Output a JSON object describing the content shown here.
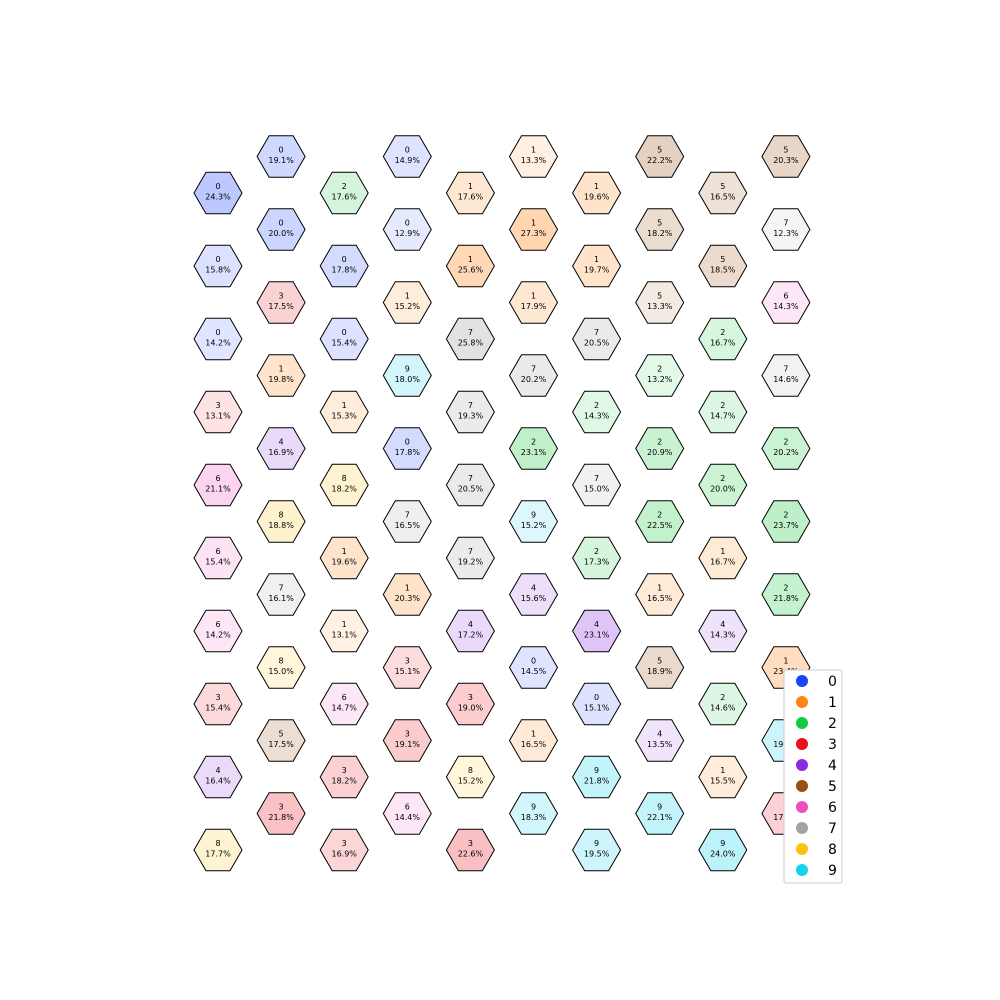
{
  "chart_data": {
    "type": "heatmap",
    "layout": "hexagonal grid, offset columns",
    "title": "",
    "xlabel": "",
    "ylabel": "",
    "legend": {
      "placement": "bottom-right",
      "entries": [
        {
          "label": "0",
          "color": "#1a44ff"
        },
        {
          "label": "1",
          "color": "#ff8514"
        },
        {
          "label": "2",
          "color": "#17c93e"
        },
        {
          "label": "3",
          "color": "#ec0f18"
        },
        {
          "label": "4",
          "color": "#8a2be2"
        },
        {
          "label": "5",
          "color": "#9a4e10"
        },
        {
          "label": "6",
          "color": "#ef4fbd"
        },
        {
          "label": "7",
          "color": "#a3a3a3"
        },
        {
          "label": "8",
          "color": "#fcc20f"
        },
        {
          "label": "9",
          "color": "#17d2ee"
        }
      ]
    },
    "columns": [
      {
        "cells": [
          {
            "digit": "0",
            "pct": "24.3%",
            "value": 24.3
          },
          {
            "digit": "0",
            "pct": "15.8%",
            "value": 15.8
          },
          {
            "digit": "0",
            "pct": "14.2%",
            "value": 14.2
          },
          {
            "digit": "3",
            "pct": "13.1%",
            "value": 13.1
          },
          {
            "digit": "6",
            "pct": "21.1%",
            "value": 21.1
          },
          {
            "digit": "6",
            "pct": "15.4%",
            "value": 15.4
          },
          {
            "digit": "6",
            "pct": "14.2%",
            "value": 14.2
          },
          {
            "digit": "3",
            "pct": "15.4%",
            "value": 15.4
          },
          {
            "digit": "4",
            "pct": "16.4%",
            "value": 16.4
          },
          {
            "digit": "8",
            "pct": "17.7%",
            "value": 17.7
          }
        ]
      },
      {
        "cells": [
          {
            "digit": "0",
            "pct": "19.1%",
            "value": 19.1
          },
          {
            "digit": "0",
            "pct": "20.0%",
            "value": 20.0
          },
          {
            "digit": "3",
            "pct": "17.5%",
            "value": 17.5
          },
          {
            "digit": "1",
            "pct": "19.8%",
            "value": 19.8
          },
          {
            "digit": "4",
            "pct": "16.9%",
            "value": 16.9
          },
          {
            "digit": "8",
            "pct": "18.8%",
            "value": 18.8
          },
          {
            "digit": "7",
            "pct": "16.1%",
            "value": 16.1
          },
          {
            "digit": "8",
            "pct": "15.0%",
            "value": 15.0
          },
          {
            "digit": "5",
            "pct": "17.5%",
            "value": 17.5
          },
          {
            "digit": "3",
            "pct": "21.8%",
            "value": 21.8
          }
        ]
      },
      {
        "cells": [
          {
            "digit": "2",
            "pct": "17.6%",
            "value": 17.6
          },
          {
            "digit": "0",
            "pct": "17.8%",
            "value": 17.8
          },
          {
            "digit": "0",
            "pct": "15.4%",
            "value": 15.4
          },
          {
            "digit": "1",
            "pct": "15.3%",
            "value": 15.3
          },
          {
            "digit": "8",
            "pct": "18.2%",
            "value": 18.2
          },
          {
            "digit": "1",
            "pct": "19.6%",
            "value": 19.6
          },
          {
            "digit": "1",
            "pct": "13.1%",
            "value": 13.1
          },
          {
            "digit": "6",
            "pct": "14.7%",
            "value": 14.7
          },
          {
            "digit": "3",
            "pct": "18.2%",
            "value": 18.2
          },
          {
            "digit": "3",
            "pct": "16.9%",
            "value": 16.9
          }
        ]
      },
      {
        "cells": [
          {
            "digit": "0",
            "pct": "14.9%",
            "value": 14.9
          },
          {
            "digit": "0",
            "pct": "12.9%",
            "value": 12.9
          },
          {
            "digit": "1",
            "pct": "15.2%",
            "value": 15.2
          },
          {
            "digit": "9",
            "pct": "18.0%",
            "value": 18.0
          },
          {
            "digit": "0",
            "pct": "17.8%",
            "value": 17.8
          },
          {
            "digit": "7",
            "pct": "16.5%",
            "value": 16.5
          },
          {
            "digit": "1",
            "pct": "20.3%",
            "value": 20.3
          },
          {
            "digit": "3",
            "pct": "15.1%",
            "value": 15.1
          },
          {
            "digit": "3",
            "pct": "19.1%",
            "value": 19.1
          },
          {
            "digit": "6",
            "pct": "14.4%",
            "value": 14.4
          }
        ]
      },
      {
        "cells": [
          {
            "digit": "1",
            "pct": "17.6%",
            "value": 17.6
          },
          {
            "digit": "1",
            "pct": "25.6%",
            "value": 25.6
          },
          {
            "digit": "7",
            "pct": "25.8%",
            "value": 25.8
          },
          {
            "digit": "7",
            "pct": "19.3%",
            "value": 19.3
          },
          {
            "digit": "7",
            "pct": "20.5%",
            "value": 20.5
          },
          {
            "digit": "7",
            "pct": "19.2%",
            "value": 19.2
          },
          {
            "digit": "4",
            "pct": "17.2%",
            "value": 17.2
          },
          {
            "digit": "3",
            "pct": "19.0%",
            "value": 19.0
          },
          {
            "digit": "8",
            "pct": "15.2%",
            "value": 15.2
          },
          {
            "digit": "3",
            "pct": "22.6%",
            "value": 22.6
          }
        ]
      },
      {
        "cells": [
          {
            "digit": "1",
            "pct": "13.3%",
            "value": 13.3
          },
          {
            "digit": "1",
            "pct": "27.3%",
            "value": 27.3
          },
          {
            "digit": "1",
            "pct": "17.9%",
            "value": 17.9
          },
          {
            "digit": "7",
            "pct": "20.2%",
            "value": 20.2
          },
          {
            "digit": "2",
            "pct": "23.1%",
            "value": 23.1
          },
          {
            "digit": "9",
            "pct": "15.2%",
            "value": 15.2
          },
          {
            "digit": "4",
            "pct": "15.6%",
            "value": 15.6
          },
          {
            "digit": "0",
            "pct": "14.5%",
            "value": 14.5
          },
          {
            "digit": "1",
            "pct": "16.5%",
            "value": 16.5
          },
          {
            "digit": "9",
            "pct": "18.3%",
            "value": 18.3
          }
        ]
      },
      {
        "cells": [
          {
            "digit": "1",
            "pct": "19.6%",
            "value": 19.6
          },
          {
            "digit": "1",
            "pct": "19.7%",
            "value": 19.7
          },
          {
            "digit": "7",
            "pct": "20.5%",
            "value": 20.5
          },
          {
            "digit": "2",
            "pct": "14.3%",
            "value": 14.3
          },
          {
            "digit": "7",
            "pct": "15.0%",
            "value": 15.0
          },
          {
            "digit": "2",
            "pct": "17.3%",
            "value": 17.3
          },
          {
            "digit": "4",
            "pct": "23.1%",
            "value": 23.1
          },
          {
            "digit": "0",
            "pct": "15.1%",
            "value": 15.1
          },
          {
            "digit": "9",
            "pct": "21.8%",
            "value": 21.8
          },
          {
            "digit": "9",
            "pct": "19.5%",
            "value": 19.5
          }
        ]
      },
      {
        "cells": [
          {
            "digit": "5",
            "pct": "22.2%",
            "value": 22.2
          },
          {
            "digit": "5",
            "pct": "18.2%",
            "value": 18.2
          },
          {
            "digit": "5",
            "pct": "13.3%",
            "value": 13.3
          },
          {
            "digit": "2",
            "pct": "13.2%",
            "value": 13.2
          },
          {
            "digit": "2",
            "pct": "20.9%",
            "value": 20.9
          },
          {
            "digit": "2",
            "pct": "22.5%",
            "value": 22.5
          },
          {
            "digit": "1",
            "pct": "16.5%",
            "value": 16.5
          },
          {
            "digit": "5",
            "pct": "18.9%",
            "value": 18.9
          },
          {
            "digit": "4",
            "pct": "13.5%",
            "value": 13.5
          },
          {
            "digit": "9",
            "pct": "22.1%",
            "value": 22.1
          }
        ]
      },
      {
        "cells": [
          {
            "digit": "5",
            "pct": "16.5%",
            "value": 16.5
          },
          {
            "digit": "5",
            "pct": "18.5%",
            "value": 18.5
          },
          {
            "digit": "2",
            "pct": "16.7%",
            "value": 16.7
          },
          {
            "digit": "2",
            "pct": "14.7%",
            "value": 14.7
          },
          {
            "digit": "2",
            "pct": "20.0%",
            "value": 20.0
          },
          {
            "digit": "1",
            "pct": "16.7%",
            "value": 16.7
          },
          {
            "digit": "4",
            "pct": "14.3%",
            "value": 14.3
          },
          {
            "digit": "2",
            "pct": "14.6%",
            "value": 14.6
          },
          {
            "digit": "1",
            "pct": "15.5%",
            "value": 15.5
          },
          {
            "digit": "9",
            "pct": "24.0%",
            "value": 24.0
          }
        ]
      },
      {
        "cells": [
          {
            "digit": "5",
            "pct": "20.3%",
            "value": 20.3
          },
          {
            "digit": "7",
            "pct": "12.3%",
            "value": 12.3
          },
          {
            "digit": "6",
            "pct": "14.3%",
            "value": 14.3
          },
          {
            "digit": "7",
            "pct": "14.6%",
            "value": 14.6
          },
          {
            "digit": "2",
            "pct": "20.2%",
            "value": 20.2
          },
          {
            "digit": "2",
            "pct": "23.7%",
            "value": 23.7
          },
          {
            "digit": "2",
            "pct": "21.8%",
            "value": 21.8
          },
          {
            "digit": "1",
            "pct": "23.4%",
            "value": 23.4
          },
          {
            "digit": "9",
            "pct": "19.8%",
            "value": 19.8
          },
          {
            "digit": "3",
            "pct": "17.8%",
            "value": 17.8
          }
        ]
      }
    ]
  }
}
